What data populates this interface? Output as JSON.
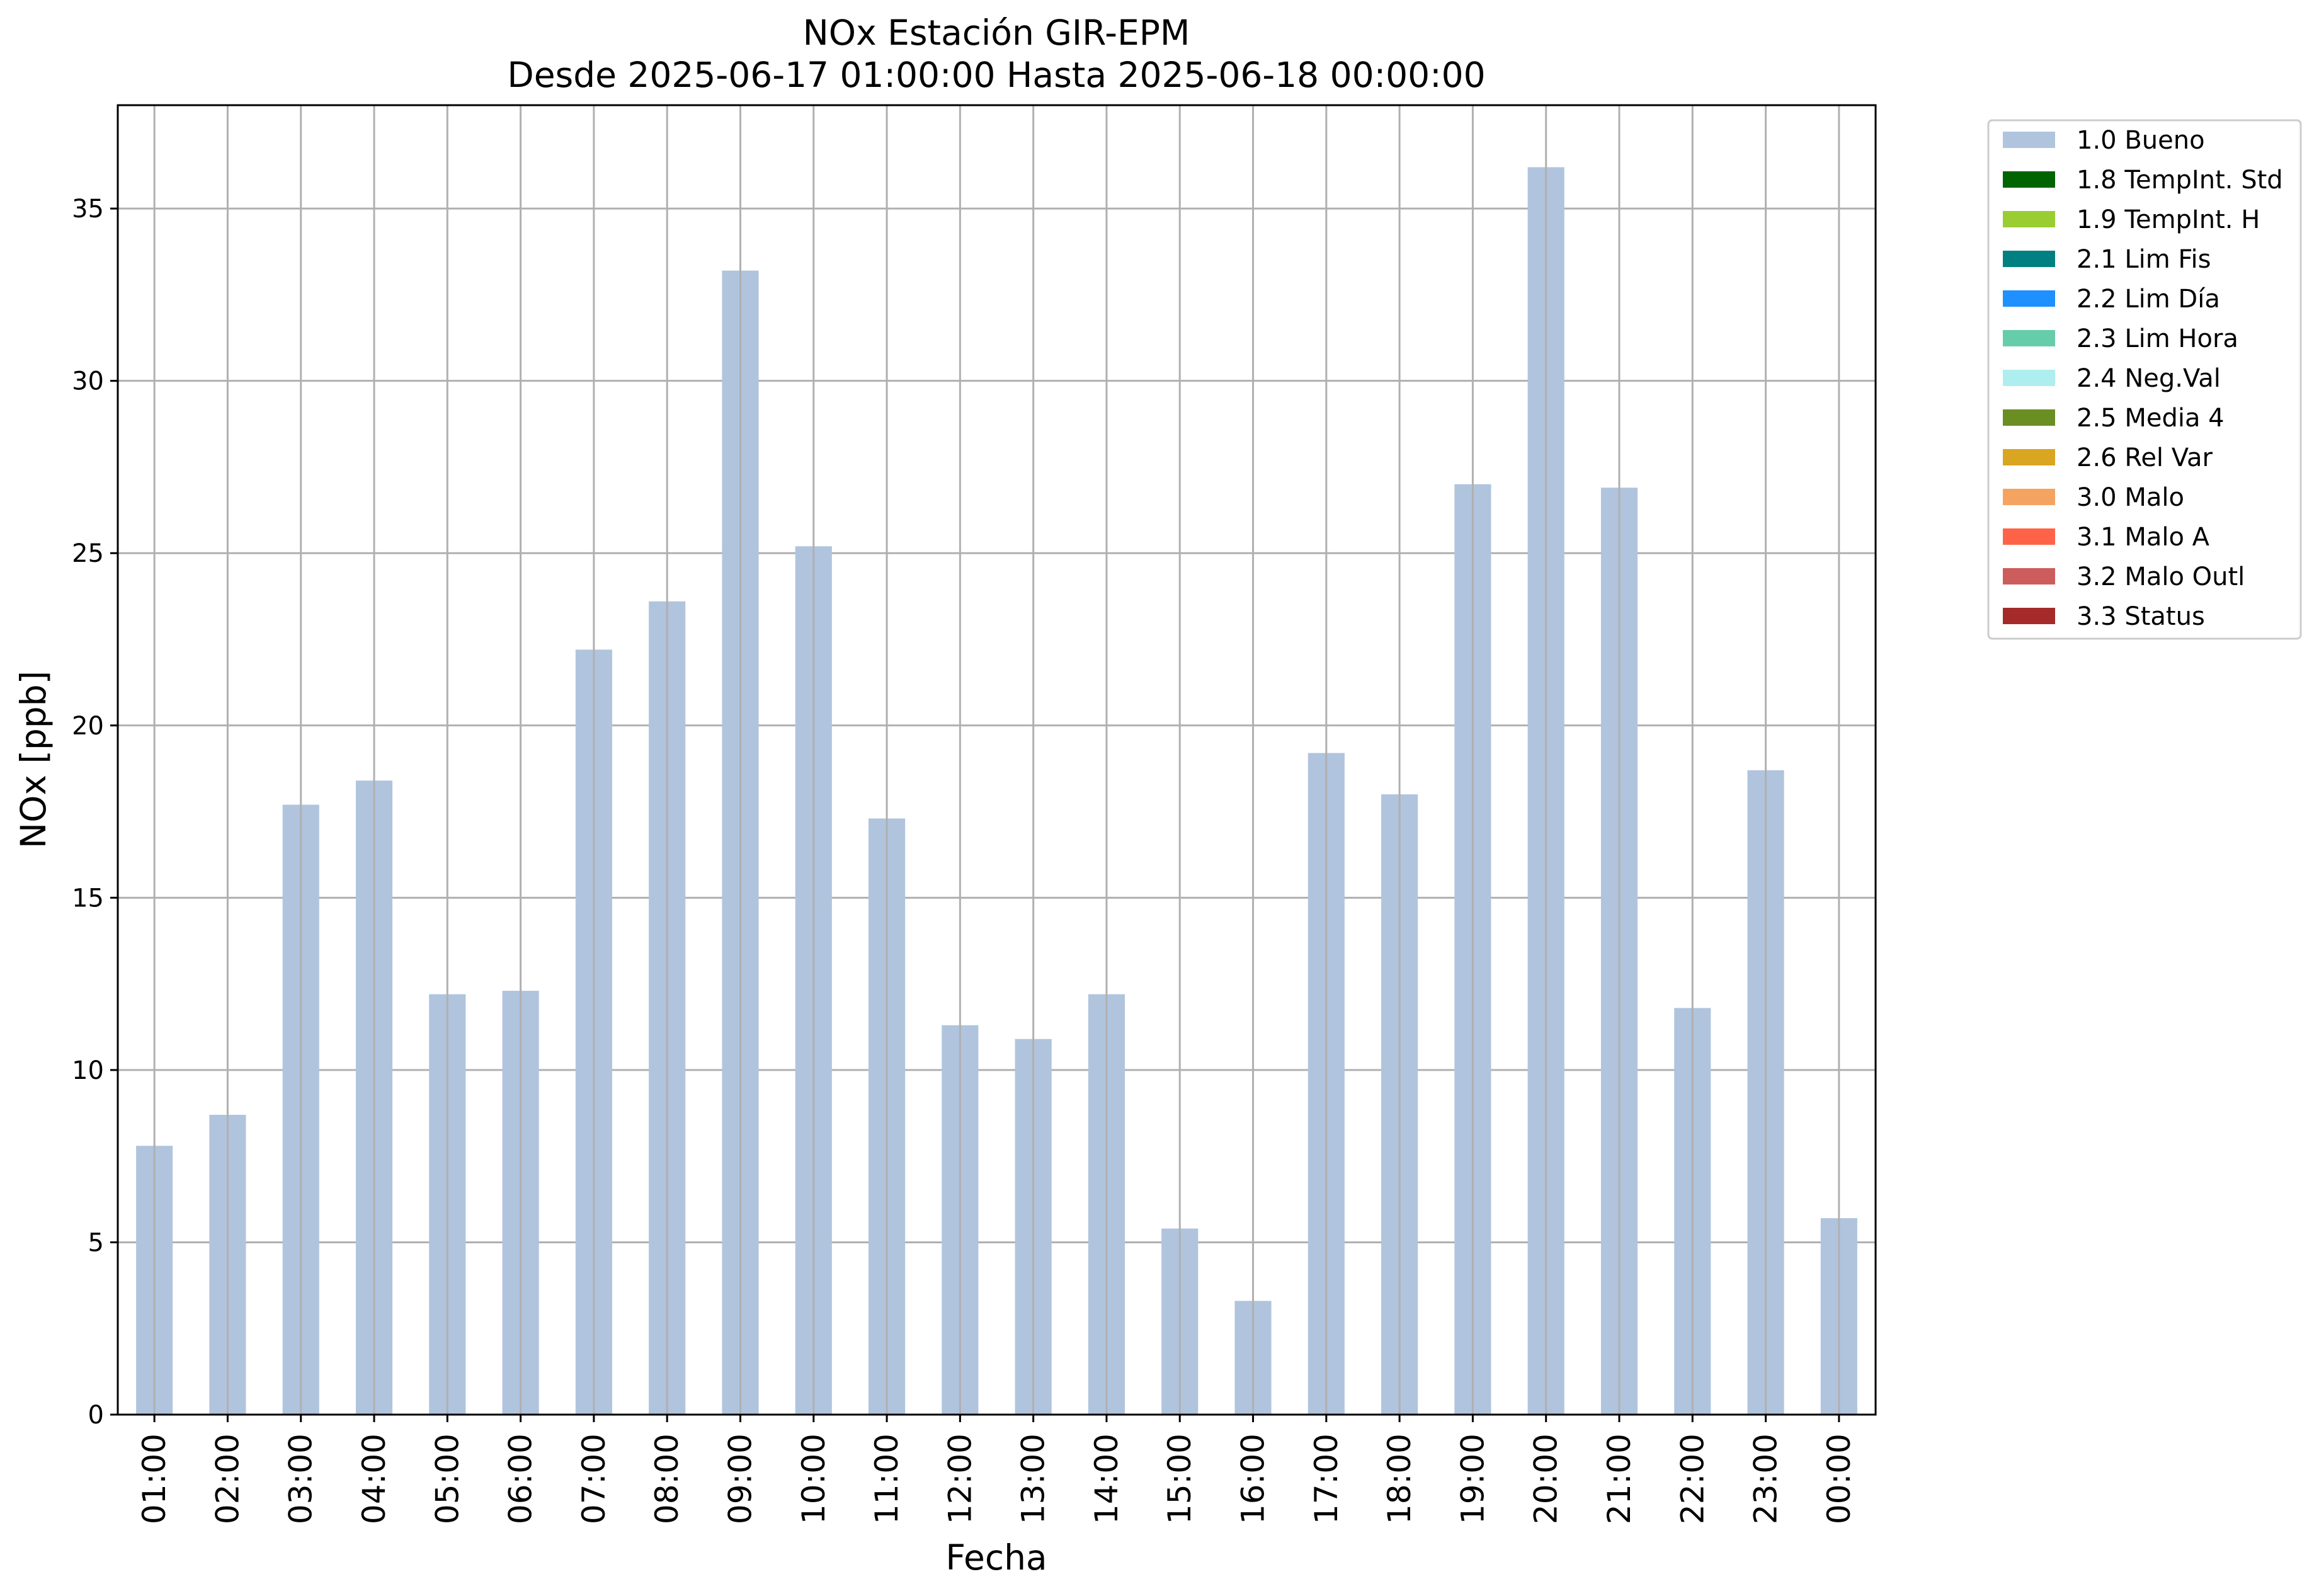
{
  "chart_data": {
    "type": "bar",
    "title": "NOx Estación GIR-EPM",
    "subtitle": "Desde 2025-06-17 01:00:00 Hasta 2025-06-18 00:00:00",
    "xlabel": "Fecha",
    "ylabel": "NOx [ppb]",
    "ylim": [
      0,
      38
    ],
    "yticks": [
      0,
      5,
      10,
      15,
      20,
      25,
      30,
      35
    ],
    "grid": true,
    "legend_position": "outside right, top",
    "categories": [
      "01:00",
      "02:00",
      "03:00",
      "04:00",
      "05:00",
      "06:00",
      "07:00",
      "08:00",
      "09:00",
      "10:00",
      "11:00",
      "12:00",
      "13:00",
      "14:00",
      "15:00",
      "16:00",
      "17:00",
      "18:00",
      "19:00",
      "20:00",
      "21:00",
      "22:00",
      "23:00",
      "00:00"
    ],
    "series": [
      {
        "name": "1.0 Bueno",
        "color": "#b0c4de",
        "values": [
          7.8,
          8.7,
          17.7,
          18.4,
          12.2,
          12.3,
          22.2,
          23.6,
          33.2,
          25.2,
          17.3,
          11.3,
          10.9,
          12.2,
          5.4,
          3.3,
          19.2,
          18.0,
          27.0,
          36.2,
          26.9,
          11.8,
          18.7,
          5.7
        ]
      }
    ],
    "legend": [
      {
        "label": "1.0 Bueno",
        "color": "#b0c4de"
      },
      {
        "label": "1.8 TempInt. Std",
        "color": "#006400"
      },
      {
        "label": "1.9 TempInt. H",
        "color": "#9acd32"
      },
      {
        "label": "2.1 Lim Fis",
        "color": "#008080"
      },
      {
        "label": "2.2 Lim Día",
        "color": "#1e90ff"
      },
      {
        "label": "2.3 Lim Hora",
        "color": "#66cdaa"
      },
      {
        "label": "2.4 Neg.Val",
        "color": "#afeeee"
      },
      {
        "label": "2.5 Media 4",
        "color": "#6b8e23"
      },
      {
        "label": "2.6 Rel Var",
        "color": "#daa520"
      },
      {
        "label": "3.0 Malo",
        "color": "#f4a460"
      },
      {
        "label": "3.1 Malo A",
        "color": "#ff6347"
      },
      {
        "label": "3.2 Malo Outl",
        "color": "#cd5c5c"
      },
      {
        "label": "3.3 Status",
        "color": "#a52a2a"
      }
    ]
  }
}
